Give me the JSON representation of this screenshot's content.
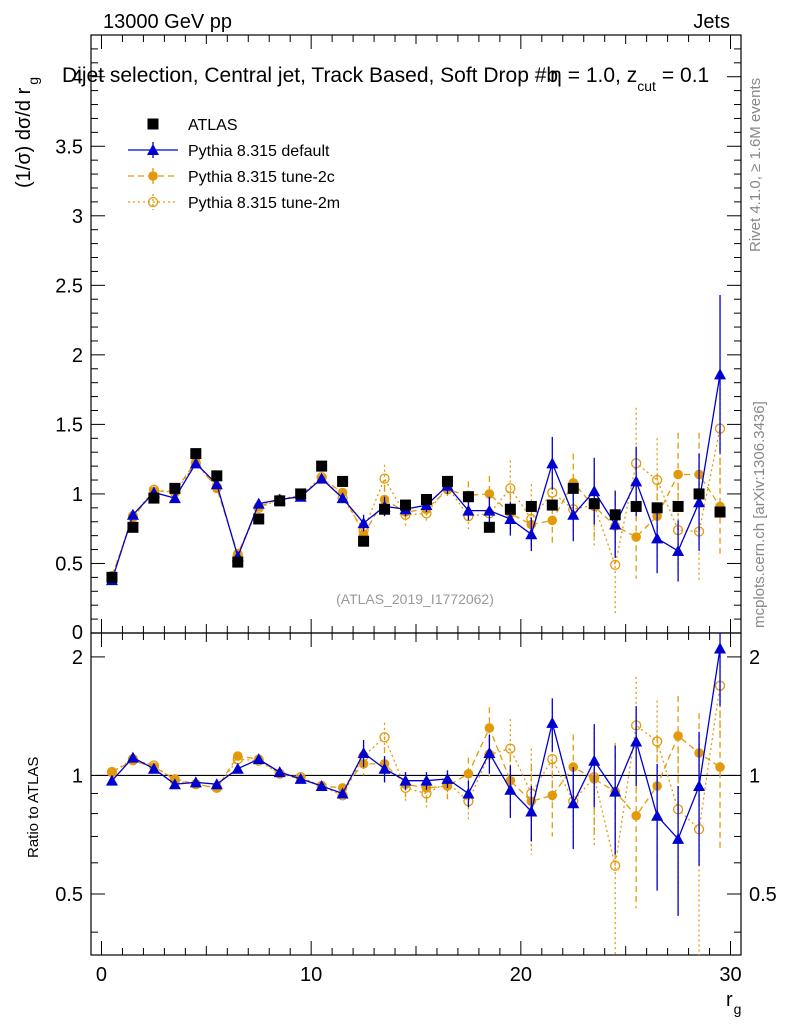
{
  "header": {
    "left": "13000 GeV pp",
    "right": "Jets",
    "title": "Dijet selection, Central jet, Track Based, Soft Drop #b",
    "title_tail": "= 1.0, z",
    "title_sub": "cut",
    "title_end": "= 0.1",
    "eta": "η"
  },
  "side": {
    "rivet": "Rivet 4.1.0, ≥ 1.6M events",
    "mcplots": "mcplots.cern.ch [arXiv:1306.3436]"
  },
  "watermark": "(ATLAS_2019_I1772062)",
  "axes": {
    "ylabel_top": "(1/σ) dσ/d r",
    "ylabel_top_sub": "g",
    "ylabel_bottom": "Ratio to ATLAS",
    "xlabel": "r",
    "xlabel_sub": "g"
  },
  "chart_data": [
    {
      "type": "scatter",
      "title": "Dijet selection, Central jet, Track Based, Soft Drop #b = 1.0, z_cut = 0.1",
      "xlabel": "r_g",
      "ylabel": "(1/σ) dσ/d r_g",
      "xlim": [
        -0.5,
        30.5
      ],
      "ylim": [
        0,
        4.3
      ],
      "yticks": [
        "0.5",
        "1",
        "1.5",
        "2",
        "2.5",
        "3",
        "3.5",
        "4"
      ],
      "ytick_values": [
        0.5,
        1,
        1.5,
        2,
        2.5,
        3,
        3.5,
        4
      ],
      "x": [
        0.5,
        1.5,
        2.5,
        3.5,
        4.5,
        5.5,
        6.5,
        7.5,
        8.5,
        9.5,
        10.5,
        11.5,
        12.5,
        13.5,
        14.5,
        15.5,
        16.5,
        17.5,
        18.5,
        19.5,
        20.5,
        21.5,
        22.5,
        23.5,
        24.5,
        25.5,
        26.5,
        27.5,
        28.5,
        29.5
      ],
      "legend_position": "top-left",
      "series": [
        {
          "name": "ATLAS",
          "style": "square",
          "color": "#000000",
          "values": [
            0.4,
            0.76,
            0.97,
            1.04,
            1.29,
            1.13,
            0.51,
            0.82,
            0.95,
            1.0,
            1.2,
            1.09,
            0.66,
            0.89,
            0.92,
            0.96,
            1.09,
            0.98,
            0.76,
            0.89,
            0.91,
            0.92,
            1.04,
            0.93,
            0.85,
            0.91,
            0.9,
            0.91,
            1.0,
            0.87
          ],
          "errors": [
            0.01,
            0.01,
            0.01,
            0.01,
            0.01,
            0.01,
            0.01,
            0.01,
            0.01,
            0.01,
            0.01,
            0.01,
            0.01,
            0.01,
            0.01,
            0.01,
            0.01,
            0.02,
            0.02,
            0.02,
            0.02,
            0.02,
            0.02,
            0.02,
            0.02,
            0.02,
            0.02,
            0.02,
            0.02,
            0.02
          ]
        },
        {
          "name": "Pythia 8.315 default",
          "style": "triangle-solid",
          "color": "#0000d0",
          "values": [
            0.38,
            0.85,
            1.01,
            0.97,
            1.22,
            1.07,
            0.55,
            0.93,
            0.96,
            0.98,
            1.11,
            0.97,
            0.79,
            0.91,
            0.89,
            0.92,
            1.06,
            0.88,
            0.88,
            0.82,
            0.71,
            1.22,
            0.85,
            1.02,
            0.78,
            1.09,
            0.68,
            0.59,
            0.94,
            1.86
          ],
          "errors": [
            0.01,
            0.01,
            0.01,
            0.01,
            0.01,
            0.01,
            0.01,
            0.01,
            0.01,
            0.01,
            0.01,
            0.02,
            0.06,
            0.07,
            0.05,
            0.05,
            0.06,
            0.07,
            0.1,
            0.12,
            0.12,
            0.19,
            0.19,
            0.24,
            0.24,
            0.25,
            0.25,
            0.22,
            0.35,
            0.57
          ]
        },
        {
          "name": "Pythia 8.315 tune-2c",
          "style": "circle-dashed",
          "color": "#e29a0b",
          "values": [
            0.41,
            0.83,
            1.02,
            1.02,
            1.23,
            1.04,
            0.57,
            0.91,
            0.96,
            0.98,
            1.11,
            1.01,
            0.71,
            0.96,
            0.87,
            0.89,
            1.03,
            0.99,
            1.0,
            0.86,
            0.78,
            0.81,
            1.08,
            0.91,
            0.77,
            0.69,
            0.84,
            1.14,
            1.14,
            0.91
          ],
          "errors": [
            0.01,
            0.01,
            0.01,
            0.01,
            0.01,
            0.01,
            0.01,
            0.01,
            0.01,
            0.01,
            0.02,
            0.02,
            0.05,
            0.1,
            0.07,
            0.07,
            0.07,
            0.1,
            0.13,
            0.14,
            0.18,
            0.17,
            0.21,
            0.25,
            0.26,
            0.3,
            0.3,
            0.3,
            0.3,
            0.35
          ]
        },
        {
          "name": "Pythia 8.315 tune-2m",
          "style": "circle-open-dotted",
          "color": "#e29a0b",
          "values": [
            0.41,
            0.84,
            1.03,
            1.01,
            1.22,
            1.05,
            0.56,
            0.9,
            0.96,
            0.99,
            1.12,
            0.97,
            0.74,
            1.11,
            0.85,
            0.86,
            1.05,
            0.84,
            0.86,
            1.04,
            0.82,
            1.01,
            0.89,
            0.92,
            0.49,
            1.22,
            1.1,
            0.74,
            0.73,
            1.47
          ],
          "errors": [
            0.01,
            0.01,
            0.01,
            0.01,
            0.01,
            0.01,
            0.01,
            0.01,
            0.01,
            0.01,
            0.02,
            0.02,
            0.05,
            0.1,
            0.08,
            0.07,
            0.07,
            0.1,
            0.12,
            0.2,
            0.25,
            0.22,
            0.18,
            0.3,
            0.35,
            0.4,
            0.3,
            0.3,
            0.35,
            0.4
          ]
        }
      ]
    },
    {
      "type": "scatter",
      "title": "Ratio to ATLAS",
      "xlabel": "r_g",
      "ylabel": "Ratio to ATLAS",
      "xlim": [
        -0.5,
        30.5
      ],
      "ylim": [
        0.35,
        2.3
      ],
      "ytick_values": [
        0.5,
        1,
        2
      ],
      "yticks": [
        "0.5",
        "1",
        "2"
      ],
      "xtick_values": [
        0,
        10,
        20,
        30
      ],
      "xticks": [
        "0",
        "10",
        "20",
        "30"
      ],
      "x": [
        0.5,
        1.5,
        2.5,
        3.5,
        4.5,
        5.5,
        6.5,
        7.5,
        8.5,
        9.5,
        10.5,
        11.5,
        12.5,
        13.5,
        14.5,
        15.5,
        16.5,
        17.5,
        18.5,
        19.5,
        20.5,
        21.5,
        22.5,
        23.5,
        24.5,
        25.5,
        26.5,
        27.5,
        28.5,
        29.5
      ],
      "series": [
        {
          "name": "Pythia 8.315 default",
          "style": "triangle-solid",
          "color": "#0000d0",
          "values": [
            0.97,
            1.11,
            1.04,
            0.95,
            0.96,
            0.95,
            1.04,
            1.1,
            1.02,
            0.98,
            0.94,
            0.9,
            1.14,
            1.04,
            0.97,
            0.97,
            0.98,
            0.9,
            1.14,
            0.92,
            0.81,
            1.36,
            0.85,
            1.09,
            0.91,
            1.22,
            0.79,
            0.69,
            0.94,
            2.1
          ],
          "errors": [
            0.01,
            0.01,
            0.01,
            0.01,
            0.01,
            0.01,
            0.01,
            0.01,
            0.01,
            0.01,
            0.01,
            0.02,
            0.09,
            0.08,
            0.05,
            0.05,
            0.05,
            0.07,
            0.13,
            0.14,
            0.13,
            0.21,
            0.2,
            0.26,
            0.28,
            0.28,
            0.28,
            0.25,
            0.35,
            0.6
          ]
        },
        {
          "name": "Pythia 8.315 tune-2c",
          "style": "circle-dashed",
          "color": "#e29a0b",
          "values": [
            1.02,
            1.09,
            1.05,
            0.98,
            0.95,
            0.93,
            1.12,
            1.1,
            1.01,
            0.98,
            0.94,
            0.93,
            1.07,
            1.07,
            0.95,
            0.93,
            0.94,
            1.01,
            1.32,
            0.97,
            0.86,
            0.89,
            1.05,
            0.98,
            0.91,
            0.79,
            0.94,
            1.26,
            1.14,
            1.05
          ],
          "errors": [
            0.01,
            0.01,
            0.01,
            0.01,
            0.01,
            0.01,
            0.01,
            0.01,
            0.01,
            0.01,
            0.02,
            0.02,
            0.07,
            0.11,
            0.07,
            0.07,
            0.07,
            0.1,
            0.17,
            0.15,
            0.2,
            0.19,
            0.22,
            0.27,
            0.3,
            0.33,
            0.33,
            0.33,
            0.3,
            0.4
          ]
        },
        {
          "name": "Pythia 8.315 tune-2m",
          "style": "circle-open-dotted",
          "color": "#e29a0b",
          "values": [
            1.02,
            1.1,
            1.06,
            0.97,
            0.95,
            0.93,
            1.1,
            1.09,
            1.01,
            0.99,
            0.94,
            0.89,
            1.12,
            1.25,
            0.93,
            0.9,
            0.96,
            0.86,
            1.13,
            1.17,
            0.9,
            1.1,
            0.86,
            0.99,
            0.59,
            1.34,
            1.22,
            0.82,
            0.73,
            1.69
          ],
          "errors": [
            0.01,
            0.01,
            0.01,
            0.01,
            0.01,
            0.01,
            0.01,
            0.01,
            0.01,
            0.01,
            0.02,
            0.02,
            0.07,
            0.11,
            0.08,
            0.07,
            0.07,
            0.1,
            0.14,
            0.22,
            0.27,
            0.24,
            0.2,
            0.33,
            0.4,
            0.44,
            0.33,
            0.33,
            0.4,
            0.45
          ]
        }
      ]
    }
  ]
}
